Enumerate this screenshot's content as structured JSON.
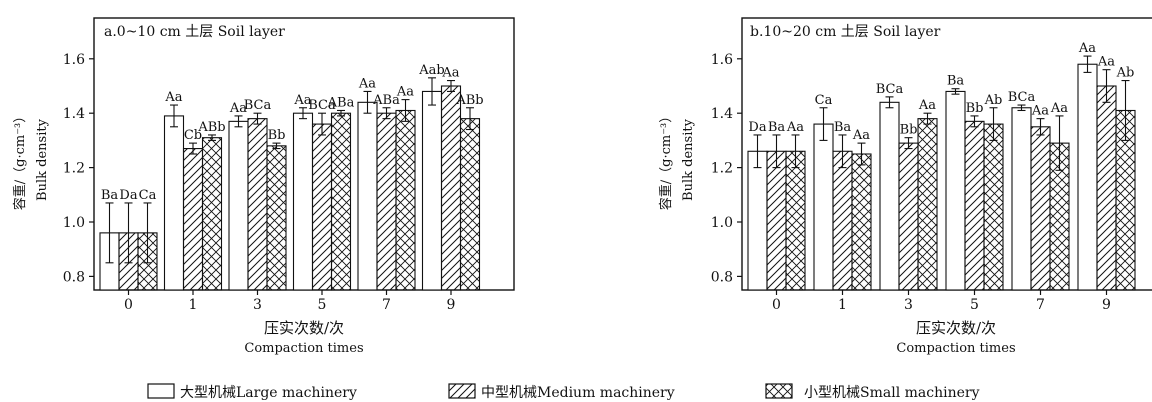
{
  "legend": {
    "items": [
      {
        "label": "大型机械Large machinery",
        "pattern": "blank"
      },
      {
        "label": "中型机械Medium machinery",
        "pattern": "hatch"
      },
      {
        "label": "小型机械Small machinery",
        "pattern": "cross"
      }
    ]
  },
  "chart_data": [
    {
      "type": "bar",
      "panel_label": "a.0~10 cm 土层 Soil layer",
      "xlabel_cn": "压实次数/次",
      "xlabel_en": "Compaction times",
      "ylabel_cn": "容重/（g·cm⁻³）",
      "ylabel_en": "Bulk density",
      "ylim": [
        0.75,
        1.75
      ],
      "yticks": [
        0.8,
        1.0,
        1.2,
        1.4,
        1.6
      ],
      "categories": [
        "0",
        "1",
        "3",
        "5",
        "7",
        "9"
      ],
      "series": [
        {
          "name": "大型机械Large machinery",
          "values": [
            0.96,
            1.39,
            1.37,
            1.4,
            1.44,
            1.48
          ],
          "errors": [
            0.11,
            0.04,
            0.02,
            0.02,
            0.04,
            0.05
          ],
          "labels": [
            "Ba",
            "Aa",
            "Aa",
            "Aa",
            "Aa",
            "Aab"
          ]
        },
        {
          "name": "中型机械Medium machinery",
          "values": [
            0.96,
            1.27,
            1.38,
            1.36,
            1.4,
            1.5
          ],
          "errors": [
            0.11,
            0.02,
            0.02,
            0.04,
            0.02,
            0.02
          ],
          "labels": [
            "Da",
            "Cb",
            "BCa",
            "BCa",
            "ABa",
            "Aa"
          ]
        },
        {
          "name": "小型机械Small machinery",
          "values": [
            0.96,
            1.31,
            1.28,
            1.4,
            1.41,
            1.38
          ],
          "errors": [
            0.11,
            0.01,
            0.01,
            0.01,
            0.04,
            0.04
          ],
          "labels": [
            "Ca",
            "ABb",
            "Bb",
            "ABa",
            "Aa",
            "ABb"
          ]
        }
      ]
    },
    {
      "type": "bar",
      "panel_label": "b.10~20 cm 土层 Soil layer",
      "xlabel_cn": "压实次数/次",
      "xlabel_en": "Compaction times",
      "ylabel_cn": "容重/（g·cm⁻³）",
      "ylabel_en": "Bulk density",
      "ylim": [
        0.75,
        1.75
      ],
      "yticks": [
        0.8,
        1.0,
        1.2,
        1.4,
        1.6
      ],
      "categories": [
        "0",
        "1",
        "3",
        "5",
        "7",
        "9"
      ],
      "series": [
        {
          "name": "大型机械Large machinery",
          "values": [
            1.26,
            1.36,
            1.44,
            1.48,
            1.42,
            1.58
          ],
          "errors": [
            0.06,
            0.06,
            0.02,
            0.01,
            0.01,
            0.03
          ],
          "labels": [
            "Da",
            "Ca",
            "BCa",
            "Ba",
            "BCa",
            "Aa"
          ]
        },
        {
          "name": "中型机械Medium machinery",
          "values": [
            1.26,
            1.26,
            1.29,
            1.37,
            1.35,
            1.5
          ],
          "errors": [
            0.06,
            0.06,
            0.02,
            0.02,
            0.03,
            0.06
          ],
          "labels": [
            "Ba",
            "Ba",
            "Bb",
            "Bb",
            "Aa",
            "Aa"
          ]
        },
        {
          "name": "小型机械Small machinery",
          "values": [
            1.26,
            1.25,
            1.38,
            1.36,
            1.29,
            1.41
          ],
          "errors": [
            0.06,
            0.04,
            0.02,
            0.06,
            0.1,
            0.11
          ],
          "labels": [
            "Aa",
            "Aa",
            "Aa",
            "Ab",
            "Aa",
            "Ab"
          ]
        }
      ]
    }
  ]
}
